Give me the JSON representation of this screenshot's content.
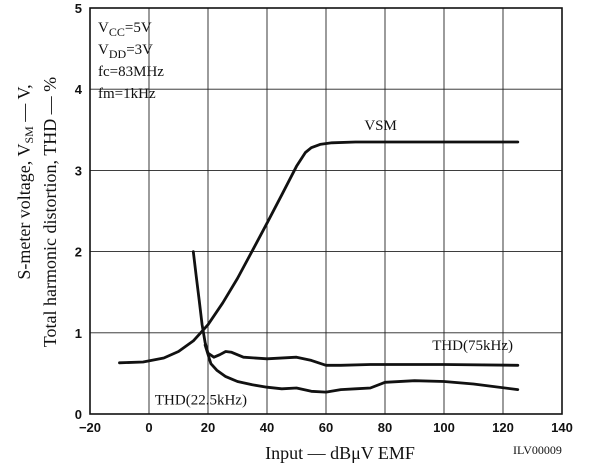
{
  "chart_data": {
    "type": "line",
    "title": "",
    "xlabel": "Input — dBμV EMF",
    "ylabel": [
      "S-meter voltage, V",
      "SM",
      " — V,",
      "Total harmonic distortion, THD — %"
    ],
    "xlim": [
      -20,
      140
    ],
    "ylim": [
      0,
      5
    ],
    "x_ticks": [
      "−20",
      "0",
      "20",
      "40",
      "60",
      "80",
      "100",
      "120",
      "140"
    ],
    "y_ticks": [
      "0",
      "1",
      "2",
      "3",
      "4",
      "5"
    ],
    "grid": true,
    "legend": "none",
    "conditions": [
      {
        "main": "V",
        "sub": "CC",
        "rest": "=5V"
      },
      {
        "main": "V",
        "sub": "DD",
        "rest": "=3V"
      },
      {
        "main": "fc=83MHz",
        "sub": "",
        "rest": ""
      },
      {
        "main": "fm=1kHz",
        "sub": "",
        "rest": ""
      }
    ],
    "series": [
      {
        "name": "VSM",
        "x": [
          -10,
          -2,
          5,
          10,
          15,
          20,
          25,
          30,
          35,
          40,
          45,
          50,
          53,
          55,
          58,
          62,
          70,
          80,
          100,
          125
        ],
        "y": [
          0.63,
          0.64,
          0.69,
          0.77,
          0.9,
          1.1,
          1.37,
          1.67,
          2.01,
          2.35,
          2.7,
          3.05,
          3.22,
          3.28,
          3.32,
          3.34,
          3.35,
          3.35,
          3.35,
          3.35
        ]
      },
      {
        "name": "THD(75kHz)",
        "x": [
          15,
          16,
          17,
          18,
          19,
          20,
          22,
          24,
          26,
          28,
          32,
          40,
          50,
          55,
          60,
          65,
          75,
          100,
          125
        ],
        "y": [
          2.0,
          1.7,
          1.4,
          1.1,
          0.88,
          0.75,
          0.7,
          0.73,
          0.77,
          0.76,
          0.7,
          0.68,
          0.7,
          0.66,
          0.6,
          0.6,
          0.61,
          0.61,
          0.6
        ]
      },
      {
        "name": "THD(22.5kHz)",
        "x": [
          19,
          21,
          23,
          26,
          30,
          35,
          40,
          45,
          50,
          55,
          60,
          65,
          70,
          75,
          80,
          90,
          100,
          110,
          125
        ],
        "y": [
          0.85,
          0.62,
          0.54,
          0.46,
          0.4,
          0.36,
          0.33,
          0.31,
          0.32,
          0.28,
          0.27,
          0.3,
          0.31,
          0.32,
          0.39,
          0.41,
          0.4,
          0.37,
          0.3
        ]
      }
    ],
    "series_labels": [
      {
        "text": "VSM",
        "x": 73,
        "y": 3.5
      },
      {
        "text": "THD(75kHz)",
        "x": 96,
        "y": 0.79
      },
      {
        "text": "THD(22.5kHz)",
        "x": 2,
        "y": 0.12
      }
    ],
    "figure_code": "ILV00009"
  }
}
